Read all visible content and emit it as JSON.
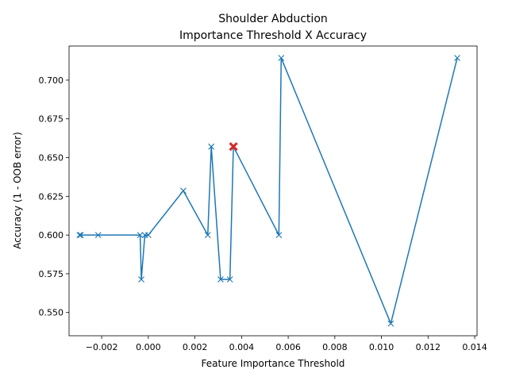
{
  "chart_data": {
    "type": "line",
    "title": [
      "Shoulder Abduction",
      "Importance Threshold X Accuracy"
    ],
    "xlabel": "Feature Importance Threshold",
    "ylabel": "Accuracy (1 - OOB error)",
    "xlim": [
      -0.0034,
      0.0141
    ],
    "ylim": [
      0.535,
      0.722
    ],
    "xticks": [
      -0.002,
      0.0,
      0.002,
      0.004,
      0.006,
      0.008,
      0.01,
      0.012,
      0.014
    ],
    "xtick_labels": [
      "−0.002",
      "0.000",
      "0.002",
      "0.004",
      "0.006",
      "0.008",
      "0.010",
      "0.012",
      "0.014"
    ],
    "yticks": [
      0.55,
      0.575,
      0.6,
      0.625,
      0.65,
      0.675,
      0.7
    ],
    "ytick_labels": [
      "0.550",
      "0.575",
      "0.600",
      "0.625",
      "0.650",
      "0.675",
      "0.700"
    ],
    "grid": false,
    "series": [
      {
        "color": "#1f77b4",
        "marker": "x",
        "x": [
          -0.00295,
          -0.0029,
          -0.00215,
          -0.00035,
          -0.0003,
          -0.00015,
          0.0,
          0.0015,
          0.00255,
          0.0027,
          0.0031,
          0.0035,
          0.00365,
          0.0056,
          0.0057,
          0.0104,
          0.01325
        ],
        "y": [
          0.6,
          0.6,
          0.6,
          0.6,
          0.5714,
          0.6,
          0.6,
          0.6286,
          0.6,
          0.6571,
          0.5714,
          0.5714,
          0.6571,
          0.6,
          0.7143,
          0.5429,
          0.7143
        ]
      }
    ],
    "highlight": {
      "x": 0.00365,
      "y": 0.6571,
      "marker": "x",
      "color": "#d62728"
    }
  }
}
